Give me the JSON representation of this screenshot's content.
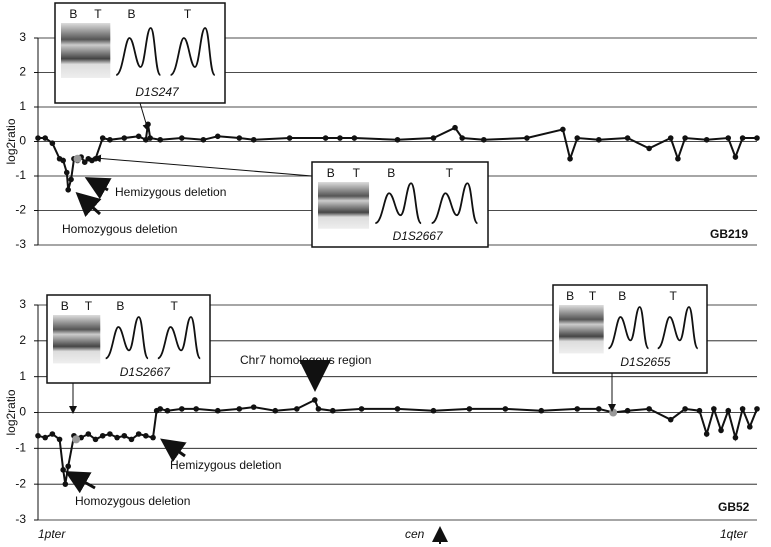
{
  "chart_data": [
    {
      "type": "line",
      "label": "GB219",
      "ylabel": "log2ratio",
      "color": "#111111",
      "grid": true,
      "xlim": [
        0,
        100
      ],
      "ylim": [
        -3,
        3
      ],
      "yticks": [
        -3,
        -2,
        -1,
        0,
        1,
        2,
        3
      ],
      "x": [
        0,
        1,
        2,
        3,
        3.5,
        4,
        4.2,
        4.6,
        5,
        5.5,
        6,
        6.5,
        7,
        7.5,
        8,
        9,
        10,
        12,
        14,
        15,
        15.3,
        15.6,
        17,
        20,
        23,
        25,
        28,
        30,
        35,
        40,
        42,
        44,
        50,
        55,
        58,
        59,
        62,
        68,
        73,
        74,
        75,
        78,
        82,
        85,
        88,
        89,
        90,
        93,
        96,
        97,
        98,
        100
      ],
      "values": [
        0.1,
        0.1,
        -0.05,
        -0.5,
        -0.55,
        -0.9,
        -1.4,
        -1.1,
        -0.5,
        -0.55,
        -0.45,
        -0.6,
        -0.5,
        -0.55,
        -0.5,
        0.1,
        0.05,
        0.1,
        0.15,
        0.05,
        0.5,
        0.1,
        0.05,
        0.1,
        0.05,
        0.15,
        0.1,
        0.05,
        0.1,
        0.1,
        0.1,
        0.1,
        0.05,
        0.1,
        0.4,
        0.1,
        0.05,
        0.1,
        0.35,
        -0.5,
        0.1,
        0.05,
        0.1,
        -0.2,
        0.1,
        -0.5,
        0.1,
        0.05,
        0.1,
        -0.45,
        0.1,
        0.1
      ],
      "highlights": {
        "color": "#999999",
        "x": [
          5.5
        ],
        "values": [
          -0.5
        ]
      },
      "annotations": [
        "Hemizygous deletion",
        "Homozygous deletion"
      ],
      "insets": [
        {
          "lanes": [
            "B",
            "T",
            "B",
            "T"
          ],
          "marker": "D1S247"
        },
        {
          "lanes": [
            "B",
            "T",
            "B",
            "T"
          ],
          "marker": "D1S2667"
        }
      ]
    },
    {
      "type": "line",
      "label": "GB52",
      "ylabel": "log2ratio",
      "color": "#111111",
      "grid": true,
      "xlim": [
        0,
        100
      ],
      "ylim": [
        -3,
        3
      ],
      "yticks": [
        -3,
        -2,
        -1,
        0,
        1,
        2,
        3
      ],
      "x": [
        0,
        1,
        2,
        3,
        3.5,
        3.8,
        4.2,
        5,
        6,
        7,
        8,
        9,
        10,
        11,
        12,
        13,
        14,
        15,
        16,
        16.5,
        17,
        18,
        20,
        22,
        25,
        28,
        30,
        33,
        36,
        38.5,
        39,
        41,
        45,
        50,
        55,
        60,
        65,
        70,
        75,
        78,
        80,
        82,
        85,
        88,
        90,
        92,
        93,
        94,
        95,
        96,
        97,
        98,
        99,
        100
      ],
      "values": [
        -0.65,
        -0.7,
        -0.6,
        -0.75,
        -1.6,
        -2,
        -1.5,
        -0.65,
        -0.7,
        -0.6,
        -0.75,
        -0.65,
        -0.6,
        -0.7,
        -0.65,
        -0.75,
        -0.6,
        -0.65,
        -0.7,
        0.05,
        0.1,
        0.05,
        0.1,
        0.1,
        0.05,
        0.1,
        0.15,
        0.05,
        0.1,
        0.35,
        0.1,
        0.05,
        0.1,
        0.1,
        0.05,
        0.1,
        0.1,
        0.05,
        0.1,
        0.1,
        0,
        0.05,
        0.1,
        -0.2,
        0.1,
        0.05,
        -0.6,
        0.1,
        -0.5,
        0.05,
        -0.7,
        0.1,
        -0.4,
        0.1
      ],
      "highlights": {
        "color": "#999999",
        "x": [
          5.3,
          80
        ],
        "values": [
          -0.75,
          0
        ]
      },
      "annotations": [
        "Chr7 homologous region",
        "Hemizygous deletion",
        "Homozygous deletion"
      ],
      "insets": [
        {
          "lanes": [
            "B",
            "T",
            "B",
            "T"
          ],
          "marker": "D1S2667"
        },
        {
          "lanes": [
            "B",
            "T",
            "B",
            "T"
          ],
          "marker": "D1S2655"
        }
      ],
      "x_annotations": [
        "1pter",
        "cen",
        "1qter"
      ]
    }
  ]
}
